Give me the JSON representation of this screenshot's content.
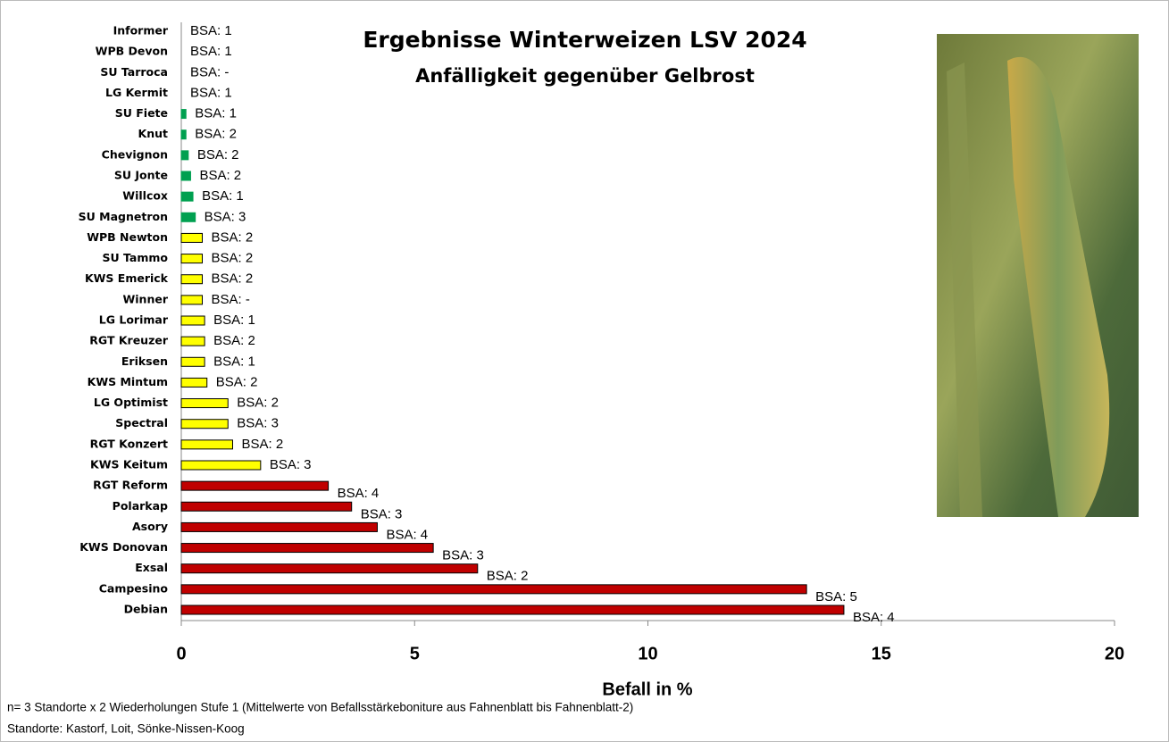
{
  "chart_data": {
    "type": "bar",
    "orientation": "horizontal",
    "title": "Ergebnisse Winterweizen LSV 2024",
    "subtitle": "Anfälligkeit gegenüber Gelbrost",
    "x_label": "Befall in %",
    "categories": [
      "Informer",
      "WPB Devon",
      "SU Tarroca",
      "LG Kermit",
      "SU Fiete",
      "Knut",
      "Chevignon",
      "SU Jonte",
      "Willcox",
      "SU Magnetron",
      "WPB Newton",
      "SU Tammo",
      "KWS Emerick",
      "Winner",
      "LG Lorimar",
      "RGT Kreuzer",
      "Eriksen",
      "KWS Mintum",
      "LG Optimist",
      "Spectral",
      "RGT Konzert",
      "KWS Keitum",
      "RGT Reform",
      "Polarkap",
      "Asory",
      "KWS Donovan",
      "Exsal",
      "Campesino",
      "Debian"
    ],
    "values": [
      0,
      0,
      0,
      0,
      0.1,
      0.1,
      0.15,
      0.2,
      0.25,
      0.3,
      0.45,
      0.45,
      0.45,
      0.45,
      0.5,
      0.5,
      0.5,
      0.55,
      1.0,
      1.0,
      1.1,
      1.7,
      3.15,
      3.65,
      4.2,
      5.4,
      6.35,
      13.4,
      14.2
    ],
    "bar_labels": [
      "BSA: 1",
      "BSA: 1",
      "BSA: -",
      "BSA: 1",
      "BSA: 1",
      "BSA: 2",
      "BSA: 2",
      "BSA: 2",
      "BSA: 1",
      "BSA: 3",
      "BSA: 2",
      "BSA: 2",
      "BSA: 2",
      "BSA: -",
      "BSA: 1",
      "BSA: 2",
      "BSA: 1",
      "BSA: 2",
      "BSA: 2",
      "BSA: 3",
      "BSA: 2",
      "BSA: 3",
      "BSA: 4",
      "BSA: 3",
      "BSA: 4",
      "BSA: 3",
      "BSA: 2",
      "BSA: 5",
      "BSA: 4"
    ],
    "colors": [
      "#00a050",
      "#00a050",
      "#00a050",
      "#00a050",
      "#00a050",
      "#00a050",
      "#00a050",
      "#00a050",
      "#00a050",
      "#00a050",
      "#ffff00",
      "#ffff00",
      "#ffff00",
      "#ffff00",
      "#ffff00",
      "#ffff00",
      "#ffff00",
      "#ffff00",
      "#ffff00",
      "#ffff00",
      "#ffff00",
      "#ffff00",
      "#c00000",
      "#c00000",
      "#c00000",
      "#c00000",
      "#c00000",
      "#c00000",
      "#c00000"
    ],
    "xlim": [
      0,
      20
    ],
    "xticks": [
      0,
      5,
      10,
      15,
      20
    ],
    "footnotes": [
      "n= 3 Standorte x 2 Wiederholungen Stufe 1  (Mittelwerte von Befallsstärkeboniture aus Fahnenblatt bis Fahnenblatt-2)",
      "Standorte: Kastorf, Loit, Sönke-Nissen-Koog"
    ]
  }
}
